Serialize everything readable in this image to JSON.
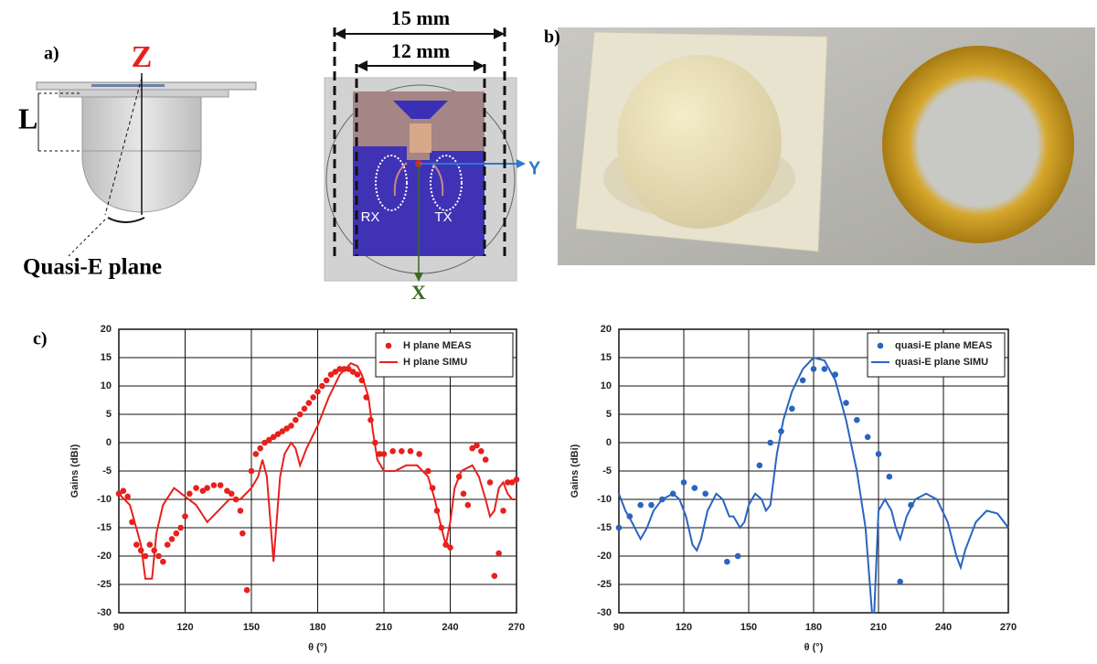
{
  "panels": {
    "a": "a)",
    "b": "b)",
    "c": "c)"
  },
  "diagram_a": {
    "z_label": "Z",
    "l_label": "L",
    "plane_label": "Quasi-E plane"
  },
  "diagram_b": {
    "outer_width": "15 mm",
    "inner_width": "12 mm",
    "y_label": "Y",
    "x_label": "X",
    "rx_label": "RX",
    "tx_label": "TX"
  },
  "chart_data": [
    {
      "type": "line",
      "xlabel": "θ (°)",
      "ylabel": "Gains (dBi)",
      "xlim": [
        90,
        270
      ],
      "ylim": [
        -30,
        20
      ],
      "xticks": [
        90,
        120,
        150,
        180,
        210,
        240,
        270
      ],
      "yticks": [
        -30,
        -25,
        -20,
        -15,
        -10,
        -5,
        0,
        5,
        10,
        15,
        20
      ],
      "grid": true,
      "legend": "upper right",
      "series": [
        {
          "name": "H plane MEAS",
          "color": "#e8201c",
          "mode": "markers",
          "x": [
            90,
            92,
            94,
            96,
            98,
            100,
            102,
            104,
            106,
            108,
            110,
            112,
            114,
            116,
            118,
            120,
            122,
            125,
            128,
            130,
            133,
            136,
            139,
            141,
            143,
            145,
            146,
            148,
            150,
            152,
            154,
            156,
            158,
            160,
            162,
            164,
            166,
            168,
            170,
            172,
            174,
            176,
            178,
            180,
            182,
            184,
            186,
            188,
            190,
            192,
            194,
            196,
            198,
            200,
            202,
            204,
            206,
            208,
            210,
            214,
            218,
            222,
            226,
            230,
            232,
            234,
            236,
            238,
            240,
            244,
            246,
            248,
            250,
            252,
            254,
            256,
            258,
            260,
            262,
            264,
            266,
            268,
            270
          ],
          "values": [
            -9,
            -8.5,
            -9.5,
            -14,
            -18,
            -19,
            -20,
            -18,
            -19,
            -20,
            -21,
            -18,
            -17,
            -16,
            -15,
            -13,
            -9,
            -8,
            -8.5,
            -8,
            -7.5,
            -7.5,
            -8.5,
            -9,
            -10,
            -12,
            -16,
            -26,
            -5,
            -2,
            -1,
            0,
            0.5,
            1,
            1.5,
            2,
            2.5,
            3,
            4,
            5,
            6,
            7,
            8,
            9,
            10,
            11,
            12,
            12.5,
            13,
            13,
            13,
            12.5,
            12,
            11,
            8,
            4,
            0,
            -2,
            -2,
            -1.5,
            -1.5,
            -1.5,
            -2,
            -5,
            -8,
            -12,
            -15,
            -18,
            -18.5,
            -6,
            -9,
            -11,
            -1,
            -0.5,
            -1.5,
            -3,
            -7,
            -23.5,
            -19.5,
            -12,
            -7,
            -7,
            -6.5
          ]
        },
        {
          "name": "H plane SIMU",
          "color": "#e8201c",
          "mode": "line",
          "x": [
            90,
            95,
            100,
            102,
            105,
            107,
            110,
            115,
            120,
            125,
            130,
            135,
            140,
            145,
            150,
            153,
            155,
            157,
            159,
            160,
            161,
            163,
            165,
            168,
            170,
            172,
            175,
            180,
            185,
            190,
            195,
            198,
            200,
            203,
            205,
            207,
            210,
            215,
            220,
            225,
            230,
            233,
            236,
            238,
            240,
            242,
            245,
            250,
            253,
            256,
            258,
            260,
            262,
            264,
            266,
            268,
            270
          ],
          "values": [
            -9,
            -11,
            -18,
            -24,
            -24,
            -16,
            -11,
            -8,
            -9.5,
            -11,
            -14,
            -12,
            -10,
            -10,
            -8,
            -6,
            -3,
            -6,
            -16,
            -21,
            -16,
            -6,
            -2,
            0,
            -1,
            -4,
            -1,
            3,
            8,
            12,
            14,
            13.5,
            12,
            8,
            2,
            -3,
            -5,
            -5,
            -4,
            -4,
            -6,
            -10,
            -15,
            -18,
            -14,
            -8,
            -5,
            -4,
            -6,
            -10,
            -13,
            -12,
            -8,
            -7,
            -9,
            -10,
            -10
          ]
        }
      ]
    },
    {
      "type": "line",
      "xlabel": "θ (°)",
      "ylabel": "Gains (dBi)",
      "xlim": [
        90,
        270
      ],
      "ylim": [
        -30,
        20
      ],
      "xticks": [
        90,
        120,
        150,
        180,
        210,
        240,
        270
      ],
      "yticks": [
        -30,
        -25,
        -20,
        -15,
        -10,
        -5,
        0,
        5,
        10,
        15,
        20
      ],
      "grid": true,
      "legend": "upper right",
      "series": [
        {
          "name": "quasi-E plane MEAS",
          "color": "#2a64c0",
          "mode": "markers",
          "x": [
            90,
            95,
            100,
            105,
            110,
            115,
            120,
            125,
            130,
            140,
            145,
            155,
            160,
            165,
            170,
            175,
            180,
            185,
            190,
            195,
            200,
            205,
            210,
            215,
            220,
            225
          ],
          "values": [
            -15,
            -13,
            -11,
            -11,
            -10,
            -9,
            -7,
            -8,
            -9,
            -21,
            -20,
            -4,
            0,
            2,
            6,
            11,
            13,
            13,
            12,
            7,
            4,
            1,
            -2,
            -6,
            -24.5,
            -11
          ]
        },
        {
          "name": "quasi-E plane SIMU",
          "color": "#2a64c0",
          "mode": "line",
          "x": [
            90,
            93,
            96,
            100,
            103,
            106,
            110,
            115,
            118,
            121,
            124,
            126,
            128,
            131,
            135,
            138,
            141,
            143,
            146,
            148,
            150,
            153,
            156,
            158,
            160,
            163,
            166,
            170,
            175,
            180,
            185,
            190,
            195,
            200,
            204,
            207,
            208,
            210,
            213,
            216,
            218,
            220,
            223,
            227,
            232,
            237,
            242,
            246,
            248,
            250,
            255,
            260,
            265,
            270
          ],
          "values": [
            -9,
            -12,
            -14,
            -17,
            -15,
            -12,
            -10,
            -9,
            -10,
            -13,
            -18,
            -19,
            -17,
            -12,
            -9,
            -10,
            -13,
            -13,
            -15,
            -14,
            -11,
            -9,
            -10,
            -12,
            -11,
            -2,
            4,
            9,
            13,
            15,
            14.5,
            11,
            4,
            -5,
            -15,
            -30,
            -30,
            -12,
            -10,
            -12,
            -15,
            -17,
            -13,
            -10,
            -9,
            -10,
            -14,
            -20,
            -22,
            -19,
            -14,
            -12,
            -12.5,
            -15
          ]
        }
      ]
    }
  ]
}
